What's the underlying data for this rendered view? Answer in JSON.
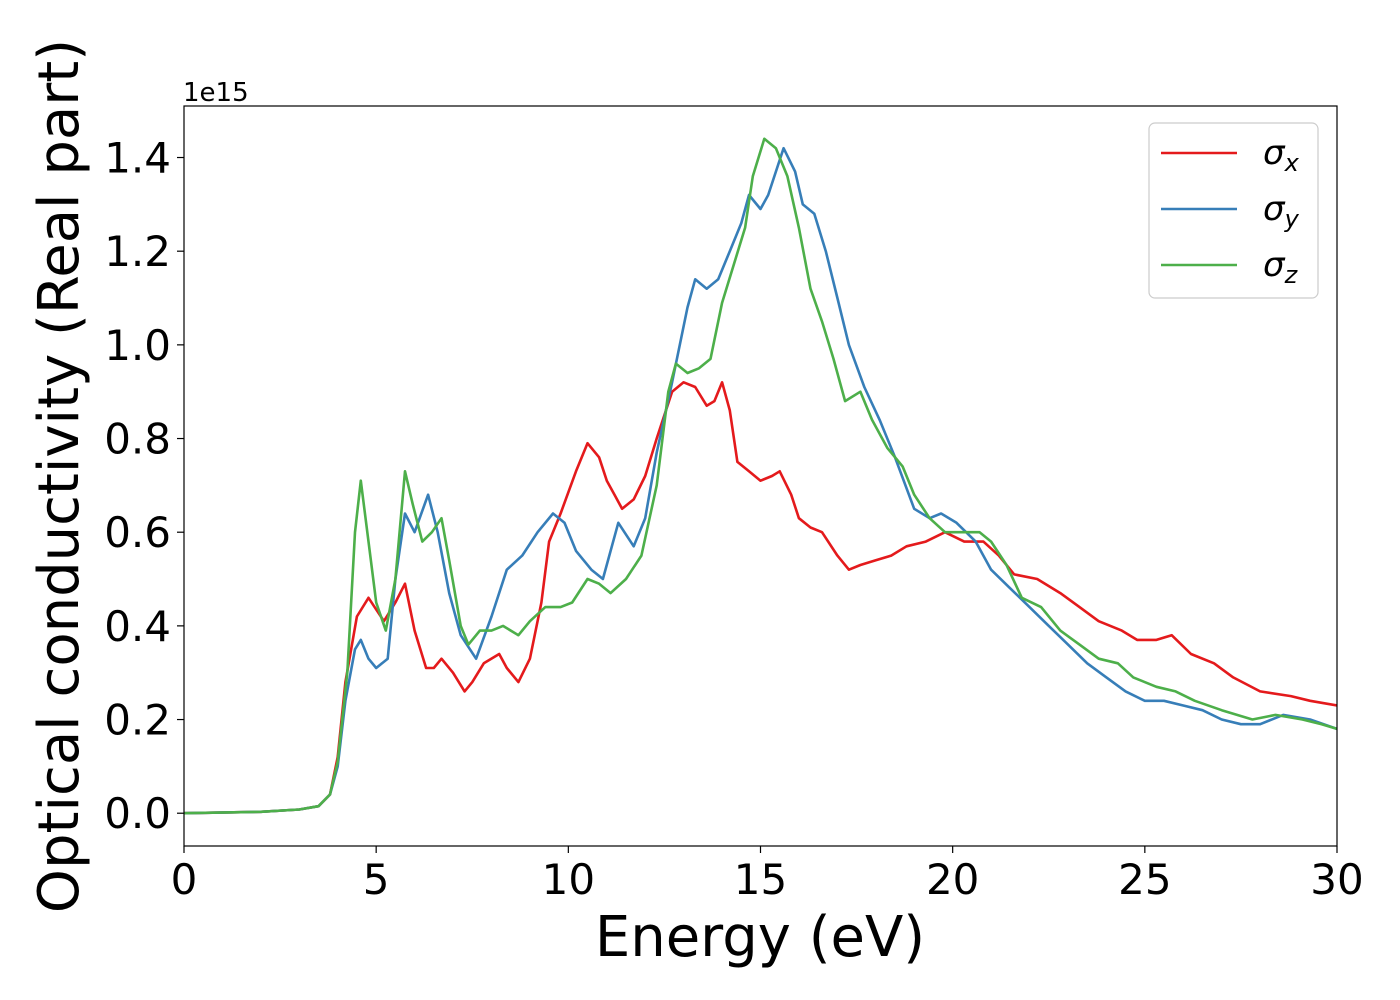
{
  "chart_data": {
    "type": "line",
    "title": "",
    "xlabel": "Energy (eV)",
    "ylabel": "Optical conductivity (Real part)",
    "offset_text": "1e15",
    "xlim": [
      0,
      30
    ],
    "ylim": [
      -0.07,
      1.51
    ],
    "y_multiplier": 1000000000000000.0,
    "xticks": [
      0,
      5,
      10,
      15,
      20,
      25,
      30
    ],
    "xtick_labels": [
      "0",
      "5",
      "10",
      "15",
      "20",
      "25",
      "30"
    ],
    "yticks": [
      0.0,
      0.2,
      0.4,
      0.6,
      0.8,
      1.0,
      1.2,
      1.4
    ],
    "ytick_labels": [
      "0.0",
      "0.2",
      "0.4",
      "0.6",
      "0.8",
      "1.0",
      "1.2",
      "1.4"
    ],
    "grid": false,
    "legend_position": "top-right",
    "series": [
      {
        "name": "σx",
        "label_base": "σ",
        "label_sub": "x",
        "color": "#e41a1c",
        "points": [
          [
            0,
            0
          ],
          [
            2,
            0.003
          ],
          [
            3,
            0.008
          ],
          [
            3.5,
            0.015
          ],
          [
            3.8,
            0.04
          ],
          [
            4,
            0.12
          ],
          [
            4.2,
            0.28
          ],
          [
            4.5,
            0.42
          ],
          [
            4.8,
            0.46
          ],
          [
            5.2,
            0.41
          ],
          [
            5.5,
            0.45
          ],
          [
            5.75,
            0.49
          ],
          [
            6,
            0.39
          ],
          [
            6.3,
            0.31
          ],
          [
            6.5,
            0.31
          ],
          [
            6.7,
            0.33
          ],
          [
            7,
            0.3
          ],
          [
            7.3,
            0.26
          ],
          [
            7.5,
            0.28
          ],
          [
            7.8,
            0.32
          ],
          [
            8.2,
            0.34
          ],
          [
            8.4,
            0.31
          ],
          [
            8.7,
            0.28
          ],
          [
            9,
            0.33
          ],
          [
            9.3,
            0.45
          ],
          [
            9.5,
            0.58
          ],
          [
            9.8,
            0.64
          ],
          [
            10.2,
            0.73
          ],
          [
            10.5,
            0.79
          ],
          [
            10.8,
            0.76
          ],
          [
            11,
            0.71
          ],
          [
            11.2,
            0.68
          ],
          [
            11.4,
            0.65
          ],
          [
            11.7,
            0.67
          ],
          [
            12,
            0.72
          ],
          [
            12.3,
            0.8
          ],
          [
            12.7,
            0.9
          ],
          [
            13,
            0.92
          ],
          [
            13.3,
            0.91
          ],
          [
            13.6,
            0.87
          ],
          [
            13.8,
            0.88
          ],
          [
            14,
            0.92
          ],
          [
            14.2,
            0.86
          ],
          [
            14.4,
            0.75
          ],
          [
            14.7,
            0.73
          ],
          [
            15,
            0.71
          ],
          [
            15.3,
            0.72
          ],
          [
            15.5,
            0.73
          ],
          [
            15.8,
            0.68
          ],
          [
            16,
            0.63
          ],
          [
            16.3,
            0.61
          ],
          [
            16.6,
            0.6
          ],
          [
            17,
            0.55
          ],
          [
            17.3,
            0.52
          ],
          [
            17.6,
            0.53
          ],
          [
            18,
            0.54
          ],
          [
            18.4,
            0.55
          ],
          [
            18.8,
            0.57
          ],
          [
            19.3,
            0.58
          ],
          [
            19.8,
            0.6
          ],
          [
            20.3,
            0.58
          ],
          [
            20.8,
            0.58
          ],
          [
            21.2,
            0.55
          ],
          [
            21.6,
            0.51
          ],
          [
            22.2,
            0.5
          ],
          [
            22.8,
            0.47
          ],
          [
            23.3,
            0.44
          ],
          [
            23.8,
            0.41
          ],
          [
            24.4,
            0.39
          ],
          [
            24.8,
            0.37
          ],
          [
            25.3,
            0.37
          ],
          [
            25.7,
            0.38
          ],
          [
            26.2,
            0.34
          ],
          [
            26.8,
            0.32
          ],
          [
            27.3,
            0.29
          ],
          [
            28,
            0.26
          ],
          [
            28.8,
            0.25
          ],
          [
            29.3,
            0.24
          ],
          [
            30,
            0.23
          ]
        ]
      },
      {
        "name": "σy",
        "label_base": "σ",
        "label_sub": "y",
        "color": "#377eb8",
        "points": [
          [
            0,
            0
          ],
          [
            2,
            0.003
          ],
          [
            3,
            0.008
          ],
          [
            3.5,
            0.015
          ],
          [
            3.8,
            0.04
          ],
          [
            4,
            0.1
          ],
          [
            4.2,
            0.24
          ],
          [
            4.45,
            0.35
          ],
          [
            4.6,
            0.37
          ],
          [
            4.8,
            0.33
          ],
          [
            5,
            0.31
          ],
          [
            5.3,
            0.33
          ],
          [
            5.5,
            0.5
          ],
          [
            5.75,
            0.64
          ],
          [
            6,
            0.6
          ],
          [
            6.35,
            0.68
          ],
          [
            6.6,
            0.6
          ],
          [
            6.9,
            0.47
          ],
          [
            7.2,
            0.38
          ],
          [
            7.6,
            0.33
          ],
          [
            8,
            0.42
          ],
          [
            8.4,
            0.52
          ],
          [
            8.8,
            0.55
          ],
          [
            9.2,
            0.6
          ],
          [
            9.6,
            0.64
          ],
          [
            9.9,
            0.62
          ],
          [
            10.2,
            0.56
          ],
          [
            10.6,
            0.52
          ],
          [
            10.9,
            0.5
          ],
          [
            11.3,
            0.62
          ],
          [
            11.7,
            0.57
          ],
          [
            12,
            0.63
          ],
          [
            12.3,
            0.77
          ],
          [
            12.7,
            0.92
          ],
          [
            13.1,
            1.08
          ],
          [
            13.3,
            1.14
          ],
          [
            13.6,
            1.12
          ],
          [
            13.9,
            1.14
          ],
          [
            14.2,
            1.2
          ],
          [
            14.5,
            1.26
          ],
          [
            14.7,
            1.32
          ],
          [
            15,
            1.29
          ],
          [
            15.2,
            1.32
          ],
          [
            15.6,
            1.42
          ],
          [
            15.9,
            1.37
          ],
          [
            16.1,
            1.3
          ],
          [
            16.4,
            1.28
          ],
          [
            16.7,
            1.2
          ],
          [
            17,
            1.1
          ],
          [
            17.3,
            1.0
          ],
          [
            17.7,
            0.91
          ],
          [
            18.1,
            0.84
          ],
          [
            18.5,
            0.76
          ],
          [
            19,
            0.65
          ],
          [
            19.4,
            0.63
          ],
          [
            19.7,
            0.64
          ],
          [
            20.1,
            0.62
          ],
          [
            20.6,
            0.58
          ],
          [
            21,
            0.52
          ],
          [
            21.5,
            0.48
          ],
          [
            22,
            0.44
          ],
          [
            22.5,
            0.4
          ],
          [
            23,
            0.36
          ],
          [
            23.5,
            0.32
          ],
          [
            24,
            0.29
          ],
          [
            24.5,
            0.26
          ],
          [
            25,
            0.24
          ],
          [
            25.5,
            0.24
          ],
          [
            26,
            0.23
          ],
          [
            26.5,
            0.22
          ],
          [
            27,
            0.2
          ],
          [
            27.5,
            0.19
          ],
          [
            28,
            0.19
          ],
          [
            28.6,
            0.21
          ],
          [
            29.3,
            0.2
          ],
          [
            30,
            0.18
          ]
        ]
      },
      {
        "name": "σz",
        "label_base": "σ",
        "label_sub": "z",
        "color": "#4daf4a",
        "points": [
          [
            0,
            0
          ],
          [
            2,
            0.003
          ],
          [
            3,
            0.008
          ],
          [
            3.5,
            0.015
          ],
          [
            3.8,
            0.04
          ],
          [
            4,
            0.11
          ],
          [
            4.25,
            0.3
          ],
          [
            4.45,
            0.6
          ],
          [
            4.6,
            0.71
          ],
          [
            4.8,
            0.58
          ],
          [
            5,
            0.45
          ],
          [
            5.25,
            0.39
          ],
          [
            5.5,
            0.5
          ],
          [
            5.75,
            0.73
          ],
          [
            5.95,
            0.66
          ],
          [
            6.2,
            0.58
          ],
          [
            6.45,
            0.6
          ],
          [
            6.7,
            0.63
          ],
          [
            6.9,
            0.54
          ],
          [
            7.2,
            0.4
          ],
          [
            7.4,
            0.36
          ],
          [
            7.7,
            0.39
          ],
          [
            8,
            0.39
          ],
          [
            8.3,
            0.4
          ],
          [
            8.7,
            0.38
          ],
          [
            9,
            0.41
          ],
          [
            9.4,
            0.44
          ],
          [
            9.8,
            0.44
          ],
          [
            10.1,
            0.45
          ],
          [
            10.5,
            0.5
          ],
          [
            10.8,
            0.49
          ],
          [
            11.1,
            0.47
          ],
          [
            11.5,
            0.5
          ],
          [
            11.9,
            0.55
          ],
          [
            12.3,
            0.7
          ],
          [
            12.6,
            0.9
          ],
          [
            12.8,
            0.96
          ],
          [
            13.1,
            0.94
          ],
          [
            13.4,
            0.95
          ],
          [
            13.7,
            0.97
          ],
          [
            14,
            1.09
          ],
          [
            14.3,
            1.17
          ],
          [
            14.6,
            1.25
          ],
          [
            14.8,
            1.36
          ],
          [
            15.1,
            1.44
          ],
          [
            15.4,
            1.42
          ],
          [
            15.7,
            1.36
          ],
          [
            16,
            1.25
          ],
          [
            16.3,
            1.12
          ],
          [
            16.6,
            1.05
          ],
          [
            16.9,
            0.97
          ],
          [
            17.2,
            0.88
          ],
          [
            17.6,
            0.9
          ],
          [
            17.9,
            0.84
          ],
          [
            18.3,
            0.78
          ],
          [
            18.7,
            0.74
          ],
          [
            19,
            0.68
          ],
          [
            19.4,
            0.63
          ],
          [
            19.8,
            0.6
          ],
          [
            20.2,
            0.6
          ],
          [
            20.7,
            0.6
          ],
          [
            21,
            0.58
          ],
          [
            21.4,
            0.53
          ],
          [
            21.8,
            0.46
          ],
          [
            22.3,
            0.44
          ],
          [
            22.8,
            0.39
          ],
          [
            23.3,
            0.36
          ],
          [
            23.8,
            0.33
          ],
          [
            24.3,
            0.32
          ],
          [
            24.7,
            0.29
          ],
          [
            25.3,
            0.27
          ],
          [
            25.8,
            0.26
          ],
          [
            26.3,
            0.24
          ],
          [
            27,
            0.22
          ],
          [
            27.8,
            0.2
          ],
          [
            28.4,
            0.21
          ],
          [
            29.1,
            0.2
          ],
          [
            29.6,
            0.19
          ],
          [
            30,
            0.18
          ]
        ]
      }
    ]
  }
}
